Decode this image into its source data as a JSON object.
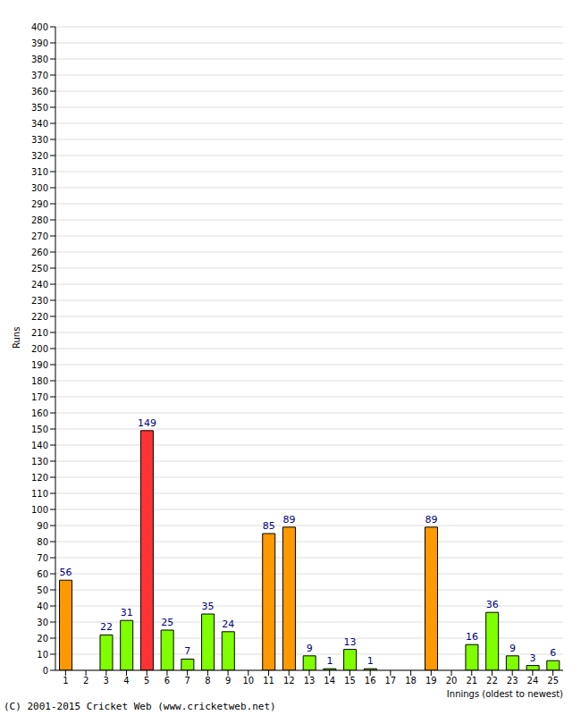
{
  "chart_data": {
    "type": "bar",
    "y_label": "Runs",
    "x_label": "Innings (oldest to newest)",
    "annotations": [
      "(C) 2001-2015 Cricket Web (www.cricketweb.net)"
    ],
    "categories": [
      "1",
      "2",
      "3",
      "4",
      "5",
      "6",
      "7",
      "8",
      "9",
      "10",
      "11",
      "12",
      "13",
      "14",
      "15",
      "16",
      "17",
      "18",
      "19",
      "20",
      "21",
      "22",
      "23",
      "24",
      "25"
    ],
    "values": [
      56,
      0,
      22,
      31,
      149,
      25,
      7,
      35,
      24,
      0,
      85,
      89,
      9,
      1,
      13,
      1,
      0,
      0,
      89,
      0,
      16,
      36,
      9,
      3,
      6
    ],
    "colors": [
      "#ff9900",
      "#80ff00",
      "#80ff00",
      "#80ff00",
      "#ff3333",
      "#80ff00",
      "#80ff00",
      "#80ff00",
      "#80ff00",
      "#80ff00",
      "#ff9900",
      "#ff9900",
      "#80ff00",
      "#80ff00",
      "#80ff00",
      "#80ff00",
      "#80ff00",
      "#80ff00",
      "#ff9900",
      "#80ff00",
      "#80ff00",
      "#80ff00",
      "#80ff00",
      "#80ff00",
      "#80ff00"
    ],
    "ylim": [
      0,
      400
    ],
    "yticks": [
      0,
      10,
      20,
      30,
      40,
      50,
      60,
      70,
      80,
      90,
      100,
      110,
      120,
      130,
      140,
      150,
      160,
      170,
      180,
      190,
      200,
      210,
      220,
      230,
      240,
      250,
      260,
      270,
      280,
      290,
      300,
      310,
      320,
      330,
      340,
      350,
      360,
      370,
      380,
      390,
      400
    ],
    "grid": true,
    "data_labels": true
  }
}
